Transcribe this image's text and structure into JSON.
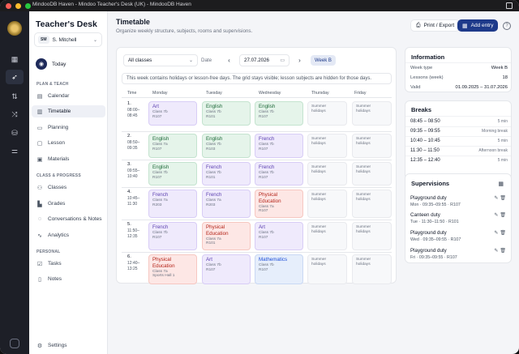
{
  "window": {
    "title": "MindooDB Haven - Mindoo Teacher's Desk (UK) - MindooDB Haven"
  },
  "app": {
    "title": "Teacher's Desk"
  },
  "user": {
    "initials": "SM",
    "name": "S. Mitchell"
  },
  "nav": {
    "today": "Today",
    "sections": {
      "plan": "PLAN & TEACH",
      "classes": "CLASS & PROGRESS",
      "personal": "PERSONAL"
    },
    "items": {
      "calendar": "Calendar",
      "timetable": "Timetable",
      "planning": "Planning",
      "lesson": "Lesson",
      "materials": "Materials",
      "classes": "Classes",
      "grades": "Grades",
      "conversations": "Conversations & Notes",
      "analytics": "Analytics",
      "tasks": "Tasks",
      "notes": "Notes",
      "settings": "Settings"
    }
  },
  "page": {
    "title": "Timetable",
    "subtitle": "Organize weekly structure, subjects, rooms and supervisions.",
    "print_label": "Print / Export",
    "add_label": "Add entry",
    "help": "?"
  },
  "filters": {
    "class_select": "All classes",
    "date_label": "Date",
    "date_value": "27.07.2026",
    "week_badge": "Week B"
  },
  "notice": "This week contains holidays or lesson-free days. The grid stays visible; lesson subjects are hidden for those days.",
  "grid": {
    "headers": {
      "time": "Time",
      "days": [
        "Monday",
        "Tuesday",
        "Wednesday",
        "Thursday",
        "Friday"
      ]
    },
    "periods": [
      {
        "num": "1.",
        "start": "08:00–",
        "end": "08:45"
      },
      {
        "num": "2.",
        "start": "08:50–",
        "end": "09:35"
      },
      {
        "num": "3.",
        "start": "09:55–",
        "end": "10:40"
      },
      {
        "num": "4.",
        "start": "10:45–",
        "end": "11:30"
      },
      {
        "num": "5.",
        "start": "11:50–",
        "end": "12:35"
      },
      {
        "num": "6.",
        "start": "12:40–",
        "end": "13:25"
      }
    ],
    "lessons": [
      [
        {
          "subject": "Art",
          "cls": "Class 7b",
          "room": "R107",
          "color": "purple"
        },
        {
          "subject": "English",
          "cls": "Class 7b",
          "room": "R101",
          "color": "green"
        },
        {
          "subject": "English",
          "cls": "Class 7b",
          "room": "R107",
          "color": "green"
        }
      ],
      [
        {
          "subject": "English",
          "cls": "Class 7a",
          "room": "R107",
          "color": "green"
        },
        {
          "subject": "English",
          "cls": "Class 7b",
          "room": "R103",
          "color": "green"
        },
        {
          "subject": "French",
          "cls": "Class 7b",
          "room": "R107",
          "color": "purple"
        }
      ],
      [
        {
          "subject": "English",
          "cls": "Class 7b",
          "room": "R107",
          "color": "green"
        },
        {
          "subject": "French",
          "cls": "Class 7b",
          "room": "R101",
          "color": "purple"
        },
        {
          "subject": "French",
          "cls": "Class 7b",
          "room": "R107",
          "color": "purple"
        }
      ],
      [
        {
          "subject": "French",
          "cls": "Class 7a",
          "room": "R203",
          "color": "purple"
        },
        {
          "subject": "French",
          "cls": "Class 7a",
          "room": "R203",
          "color": "purple"
        },
        {
          "subject": "Physical Education",
          "cls": "Class 7a",
          "room": "R107",
          "color": "red"
        }
      ],
      [
        {
          "subject": "French",
          "cls": "Class 7b",
          "room": "R107",
          "color": "purple"
        },
        {
          "subject": "Physical Education",
          "cls": "Class 7a",
          "room": "R101",
          "color": "red"
        },
        {
          "subject": "Art",
          "cls": "Class 7b",
          "room": "R107",
          "color": "purple"
        }
      ],
      [
        {
          "subject": "Physical Education",
          "cls": "Class 7a",
          "room": "Sports Hall 1",
          "color": "red"
        },
        {
          "subject": "Art",
          "cls": "Class 7b",
          "room": "R107",
          "color": "purple"
        },
        {
          "subject": "Mathematics",
          "cls": "Class 7b",
          "room": "R107",
          "color": "blue"
        }
      ]
    ],
    "holiday": {
      "line1": "Summer",
      "line2": "holidays"
    }
  },
  "information": {
    "title": "Information",
    "rows": [
      {
        "label": "Week type",
        "value": "Week B"
      },
      {
        "label": "Lessons (week)",
        "value": "18"
      },
      {
        "label": "Valid",
        "value": "01.09.2025 – 31.07.2026"
      }
    ]
  },
  "breaks": {
    "title": "Breaks",
    "rows": [
      {
        "time": "08:45 – 08:50",
        "note": "5 min"
      },
      {
        "time": "09:35 – 09:55",
        "note": "Morning break"
      },
      {
        "time": "10:40 – 10:45",
        "note": "5 min"
      },
      {
        "time": "11:30 – 11:50",
        "note": "Afternoon break"
      },
      {
        "time": "12:35 – 12:40",
        "note": "5 min"
      }
    ]
  },
  "supervisions": {
    "title": "Supervisions",
    "rows": [
      {
        "title": "Playground duty",
        "detail": "Mon · 09:35–09:55 · R107"
      },
      {
        "title": "Canteen duty",
        "detail": "Tue · 11:30–11:50 · R101"
      },
      {
        "title": "Playground duty",
        "detail": "Wed · 09:35–09:55 · R107"
      },
      {
        "title": "Playground duty",
        "detail": "Fri · 09:35–09:55 · R107"
      }
    ]
  }
}
